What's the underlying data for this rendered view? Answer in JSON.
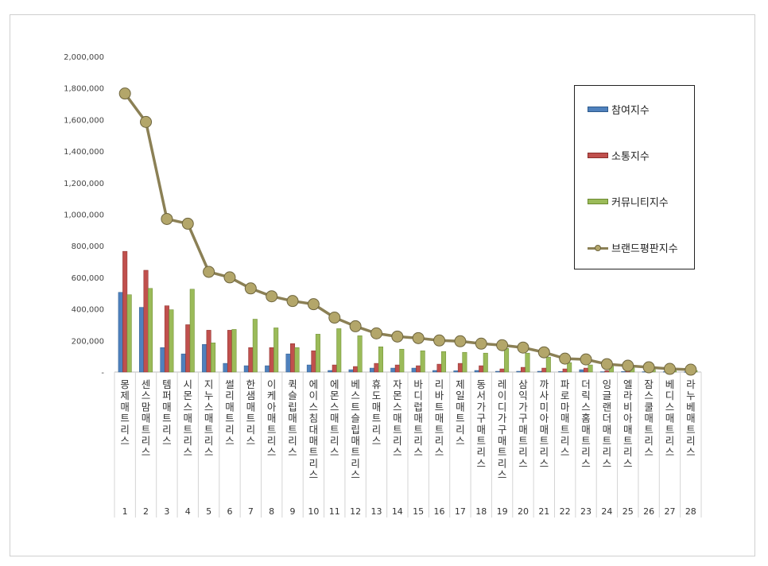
{
  "chart_data": {
    "type": "bar",
    "categories": [
      "몽제매트리스",
      "센스맘매트리스",
      "템퍼매트리스",
      "시몬스매트리스",
      "지누스매트리스",
      "썰리매트리스",
      "한샘매트리스",
      "이케아매트리스",
      "퀵슬립매트리스",
      "에이스침대매트리스",
      "에몬스매트리스",
      "베스트슬립매트리스",
      "휴도매트리스",
      "자몬스매트리스",
      "바디럽매트리스",
      "리바트매트리스",
      "제일매트리스",
      "동서가구매트리스",
      "레이디가구매트리스",
      "삼익가구매트리스",
      "까사미아매트리스",
      "파로마매트리스",
      "더릭스홈매트리스",
      "잉글랜더매트리스",
      "엘라비아매트리스",
      "잠스쿨매트리스",
      "베디스매트리스",
      "라누베매트리스"
    ],
    "ranks": [
      "1",
      "2",
      "3",
      "4",
      "5",
      "6",
      "7",
      "8",
      "9",
      "10",
      "11",
      "12",
      "13",
      "14",
      "15",
      "16",
      "17",
      "18",
      "19",
      "20",
      "21",
      "22",
      "23",
      "24",
      "25",
      "26",
      "27",
      "28"
    ],
    "series": [
      {
        "name": "참여지수",
        "type": "bar",
        "color": "#4F81BD",
        "values": [
          505000,
          410000,
          155000,
          115000,
          175000,
          55000,
          40000,
          40000,
          115000,
          45000,
          10000,
          15000,
          25000,
          25000,
          25000,
          10000,
          8000,
          10000,
          5000,
          5000,
          5000,
          3000,
          15000,
          2000,
          3000,
          2000,
          2000,
          1000
        ]
      },
      {
        "name": "소통지수",
        "type": "bar",
        "color": "#C0504D",
        "values": [
          765000,
          645000,
          420000,
          300000,
          265000,
          265000,
          155000,
          155000,
          180000,
          135000,
          45000,
          35000,
          55000,
          45000,
          40000,
          50000,
          55000,
          40000,
          20000,
          30000,
          25000,
          20000,
          25000,
          8000,
          5000,
          5000,
          3000,
          3000
        ]
      },
      {
        "name": "커뮤니티지수",
        "type": "bar",
        "color": "#9BBB59",
        "values": [
          490000,
          530000,
          395000,
          525000,
          185000,
          270000,
          335000,
          280000,
          155000,
          240000,
          275000,
          230000,
          160000,
          145000,
          135000,
          130000,
          125000,
          120000,
          150000,
          120000,
          95000,
          60000,
          45000,
          40000,
          30000,
          20000,
          15000,
          10000
        ]
      },
      {
        "name": "브랜드평판지수",
        "type": "line",
        "color": "#8B8055",
        "values": [
          1765000,
          1585000,
          970000,
          940000,
          635000,
          600000,
          530000,
          480000,
          450000,
          430000,
          345000,
          290000,
          245000,
          225000,
          215000,
          200000,
          195000,
          180000,
          170000,
          155000,
          125000,
          85000,
          80000,
          50000,
          40000,
          30000,
          20000,
          15000
        ]
      }
    ],
    "y_ticks": [
      "-",
      "200,000",
      "400,000",
      "600,000",
      "800,000",
      "1,000,000",
      "1,200,000",
      "1,400,000",
      "1,600,000",
      "1,800,000",
      "2,000,000"
    ],
    "ylim": [
      0,
      2000000
    ],
    "grid": false,
    "legend_position": "top-right"
  }
}
